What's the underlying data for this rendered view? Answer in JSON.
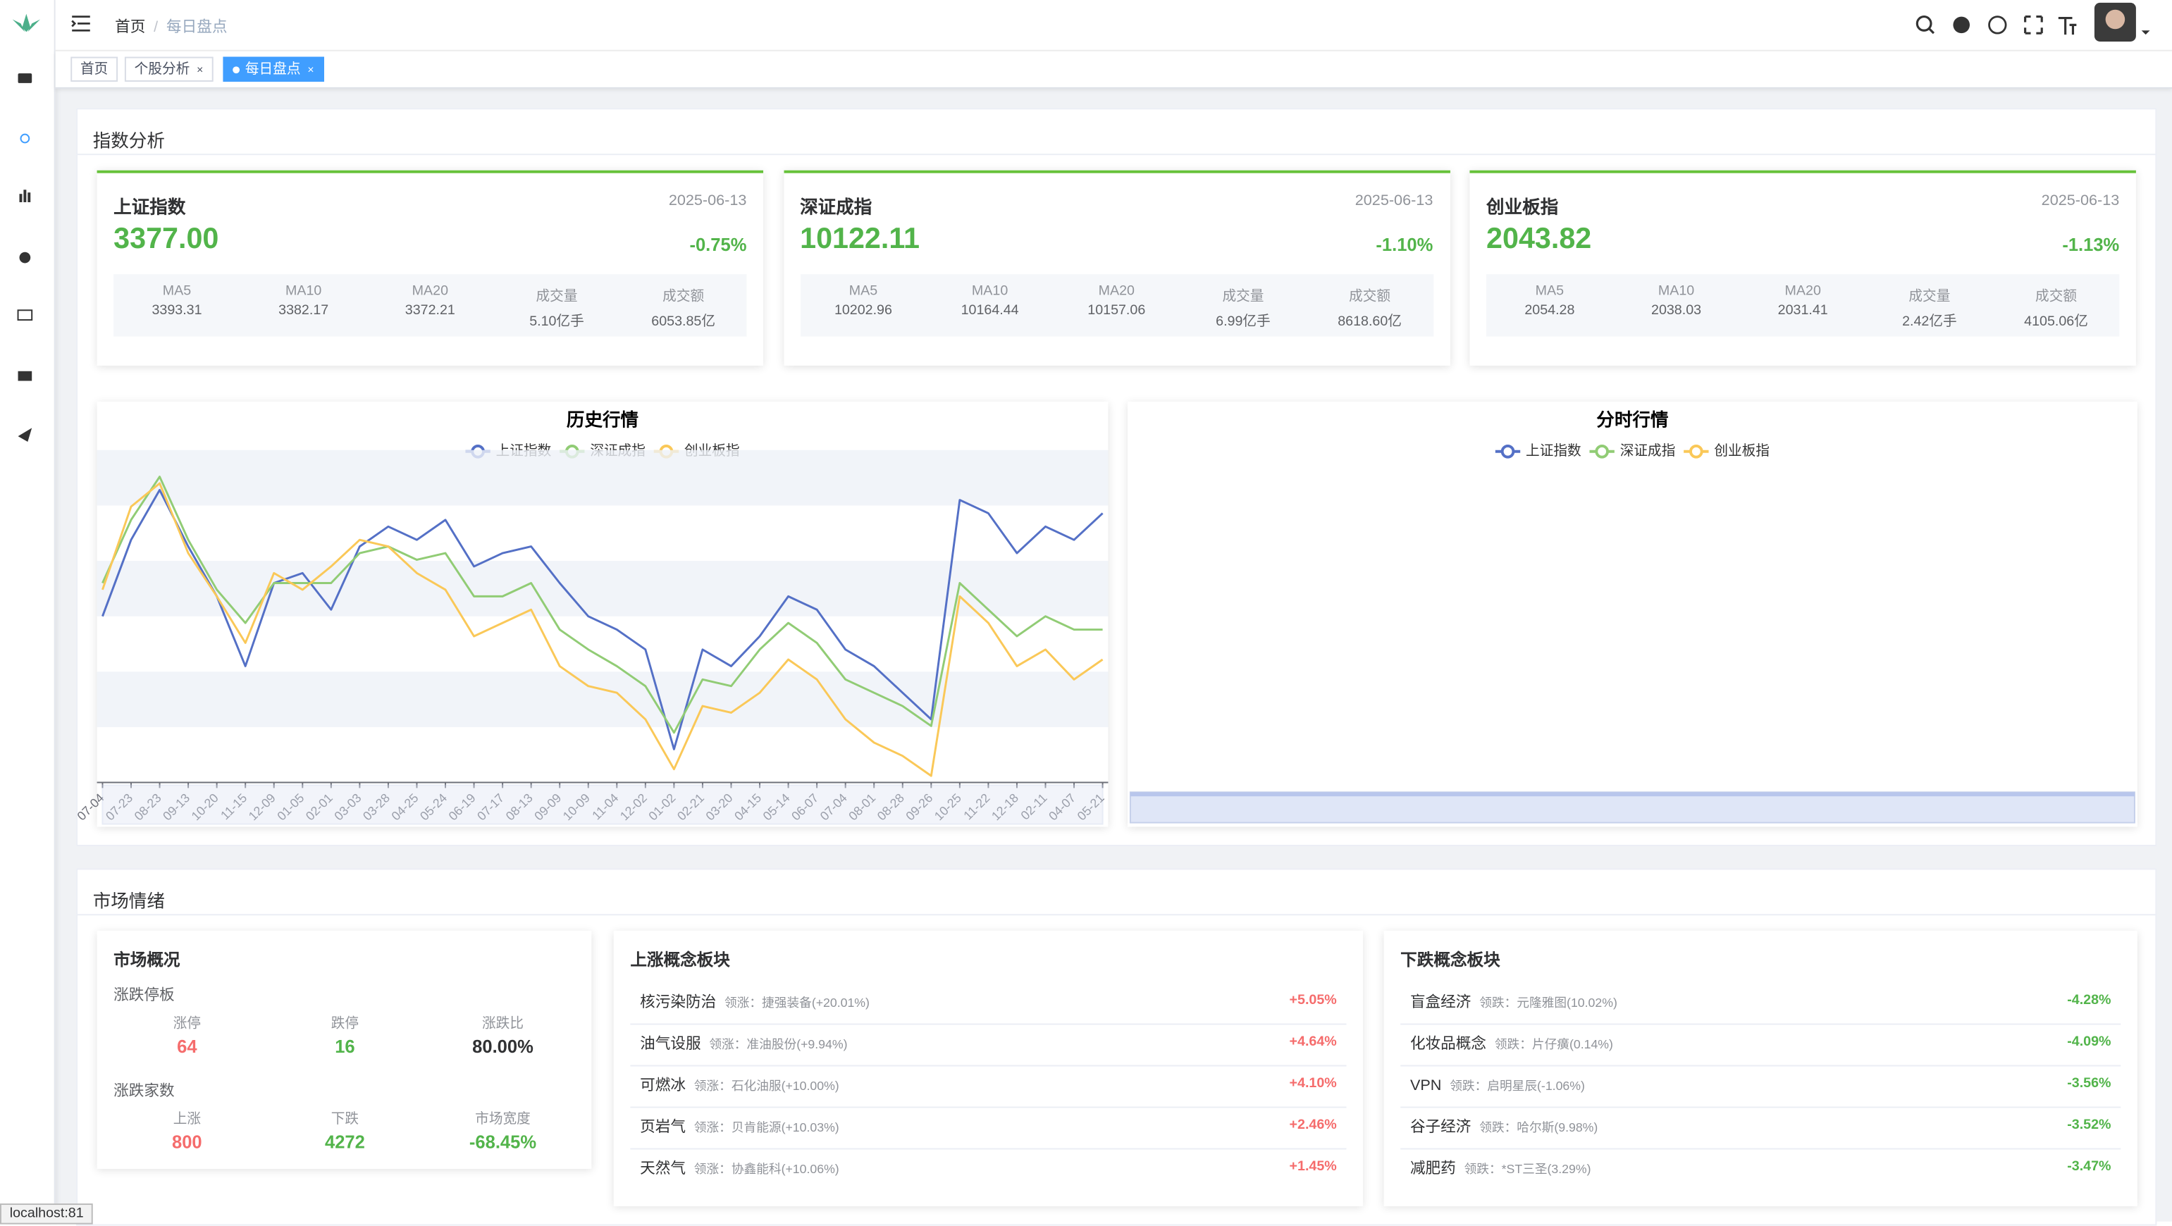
{
  "header": {
    "breadcrumb": [
      "首页",
      "每日盘点"
    ]
  },
  "tabs": [
    "首页",
    "个股分析",
    "每日盘点"
  ],
  "index_section": {
    "title": "指数分析",
    "cards": [
      {
        "name": "上证指数",
        "date": "2025-06-13",
        "value": "3377.00",
        "change": "-0.75%",
        "stats": [
          [
            "MA5",
            "3393.31"
          ],
          [
            "MA10",
            "3382.17"
          ],
          [
            "MA20",
            "3372.21"
          ],
          [
            "成交量",
            "5.10亿手"
          ],
          [
            "成交额",
            "6053.85亿"
          ]
        ]
      },
      {
        "name": "深证成指",
        "date": "2025-06-13",
        "value": "10122.11",
        "change": "-1.10%",
        "stats": [
          [
            "MA5",
            "10202.96"
          ],
          [
            "MA10",
            "10164.44"
          ],
          [
            "MA20",
            "10157.06"
          ],
          [
            "成交量",
            "6.99亿手"
          ],
          [
            "成交额",
            "8618.60亿"
          ]
        ]
      },
      {
        "name": "创业板指",
        "date": "2025-06-13",
        "value": "2043.82",
        "change": "-1.13%",
        "stats": [
          [
            "MA5",
            "2054.28"
          ],
          [
            "MA10",
            "2038.03"
          ],
          [
            "MA20",
            "2031.41"
          ],
          [
            "成交量",
            "2.42亿手"
          ],
          [
            "成交额",
            "4105.06亿"
          ]
        ]
      }
    ]
  },
  "chart_data": [
    {
      "type": "line",
      "title": "历史行情",
      "ylim": [
        -50,
        50
      ],
      "categories": [
        "07-04",
        "07-23",
        "08-23",
        "09-13",
        "10-20",
        "11-15",
        "12-09",
        "01-05",
        "02-01",
        "03-03",
        "03-28",
        "04-25",
        "05-24",
        "06-19",
        "07-17",
        "08-13",
        "09-09",
        "10-09",
        "11-04",
        "12-02",
        "01-02",
        "02-21",
        "03-20",
        "04-15",
        "05-14",
        "06-07",
        "07-04",
        "08-01",
        "08-28",
        "09-26",
        "10-25",
        "11-22",
        "12-18",
        "02-11",
        "04-07",
        "05-21"
      ],
      "series": [
        {
          "name": "上证指数",
          "color": "#5470c6",
          "values": [
            0,
            23,
            38,
            21,
            6,
            -15,
            10,
            13,
            2,
            21,
            27,
            23,
            29,
            15,
            19,
            21,
            10,
            0,
            -4,
            -10,
            -40,
            -10,
            -15,
            -6,
            6,
            2,
            -10,
            -15,
            -23,
            -31,
            35,
            31,
            19,
            27,
            23,
            31
          ]
        },
        {
          "name": "深证成指",
          "color": "#91cc75",
          "values": [
            10,
            29,
            42,
            23,
            8,
            -2,
            10,
            10,
            10,
            19,
            21,
            17,
            19,
            6,
            6,
            10,
            -4,
            -10,
            -15,
            -21,
            -35,
            -19,
            -21,
            -10,
            -2,
            -8,
            -19,
            -23,
            -27,
            -33,
            10,
            2,
            -6,
            0,
            -4,
            -4
          ]
        },
        {
          "name": "创业板指",
          "color": "#fac858",
          "values": [
            8,
            33,
            40,
            19,
            6,
            -8,
            13,
            8,
            15,
            23,
            21,
            13,
            8,
            -6,
            -2,
            2,
            -15,
            -21,
            -23,
            -31,
            -46,
            -27,
            -29,
            -23,
            -13,
            -19,
            -31,
            -38,
            -42,
            -48,
            6,
            -2,
            -15,
            -10,
            -19,
            -13
          ]
        }
      ]
    },
    {
      "type": "line",
      "title": "分时行情",
      "categories": [],
      "series": [
        {
          "name": "上证指数",
          "color": "#5470c6",
          "values": []
        },
        {
          "name": "深证成指",
          "color": "#91cc75",
          "values": []
        },
        {
          "name": "创业板指",
          "color": "#fac858",
          "values": []
        }
      ]
    }
  ],
  "sentiment_section": {
    "title": "市场情绪",
    "overview": {
      "title": "市场概况",
      "groups": [
        {
          "title": "涨跌停板",
          "items": [
            [
              "涨停",
              "64"
            ],
            [
              "跌停",
              "16"
            ],
            [
              "涨跌比",
              "80.00%"
            ]
          ]
        },
        {
          "title": "涨跌家数",
          "items": [
            [
              "上涨",
              "800"
            ],
            [
              "下跌",
              "4272"
            ],
            [
              "市场宽度",
              "-68.45%"
            ]
          ]
        }
      ]
    },
    "up": {
      "title": "上涨概念板块",
      "rows": [
        [
          "核污染防治",
          "领涨：捷强装备(+20.01%)",
          "+5.05%"
        ],
        [
          "油气设服",
          "领涨：准油股份(+9.94%)",
          "+4.64%"
        ],
        [
          "可燃冰",
          "领涨：石化油服(+10.00%)",
          "+4.10%"
        ],
        [
          "页岩气",
          "领涨：贝肯能源(+10.03%)",
          "+2.46%"
        ],
        [
          "天然气",
          "领涨：协鑫能科(+10.06%)",
          "+1.45%"
        ]
      ]
    },
    "down": {
      "title": "下跌概念板块",
      "rows": [
        [
          "盲盒经济",
          "领跌：元隆雅图(10.02%)",
          "-4.28%"
        ],
        [
          "化妆品概念",
          "领跌：片仔癀(0.14%)",
          "-4.09%"
        ],
        [
          "VPN",
          "领跌：启明星辰(-1.06%)",
          "-3.56%"
        ],
        [
          "谷子经济",
          "领跌：哈尔斯(9.98%)",
          "-3.52%"
        ],
        [
          "减肥药",
          "领跌：*ST三圣(3.29%)",
          "-3.47%"
        ]
      ]
    }
  },
  "status_bar": "localhost:81"
}
